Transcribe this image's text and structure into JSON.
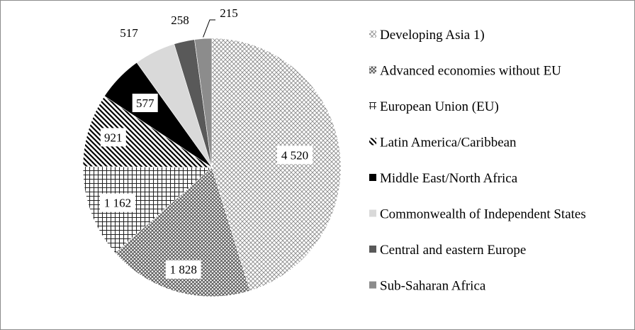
{
  "chart_data": {
    "type": "pie",
    "title": "",
    "start_angle_deg": 0,
    "direction": "clockwise",
    "legend_position": "right",
    "slices": [
      {
        "name": "Developing Asia 1)",
        "value": 4520,
        "label": "4 520",
        "pattern": "crosshatch",
        "color": "#999999"
      },
      {
        "name": "Advanced economies without EU",
        "value": 1828,
        "label": "1 828",
        "pattern": "dots-coarse",
        "color": "#777777"
      },
      {
        "name": "European Union (EU)",
        "value": 1162,
        "label": "1 162",
        "pattern": "grid",
        "color": "#555555"
      },
      {
        "name": "Latin America/Caribbean",
        "value": 921,
        "label": "921",
        "pattern": "diagonal",
        "color": "#000000"
      },
      {
        "name": "Middle East/North Africa",
        "value": 577,
        "label": "577",
        "pattern": "solid",
        "color": "#000000"
      },
      {
        "name": "Commonwealth of Independent States",
        "value": 517,
        "label": "517",
        "pattern": "solid",
        "color": "#d9d9d9"
      },
      {
        "name": "Central and eastern Europe",
        "value": 258,
        "label": "258",
        "pattern": "solid",
        "color": "#595959"
      },
      {
        "name": "Sub-Saharan Africa",
        "value": 215,
        "label": "215",
        "pattern": "solid",
        "color": "#8c8c8c"
      }
    ]
  }
}
